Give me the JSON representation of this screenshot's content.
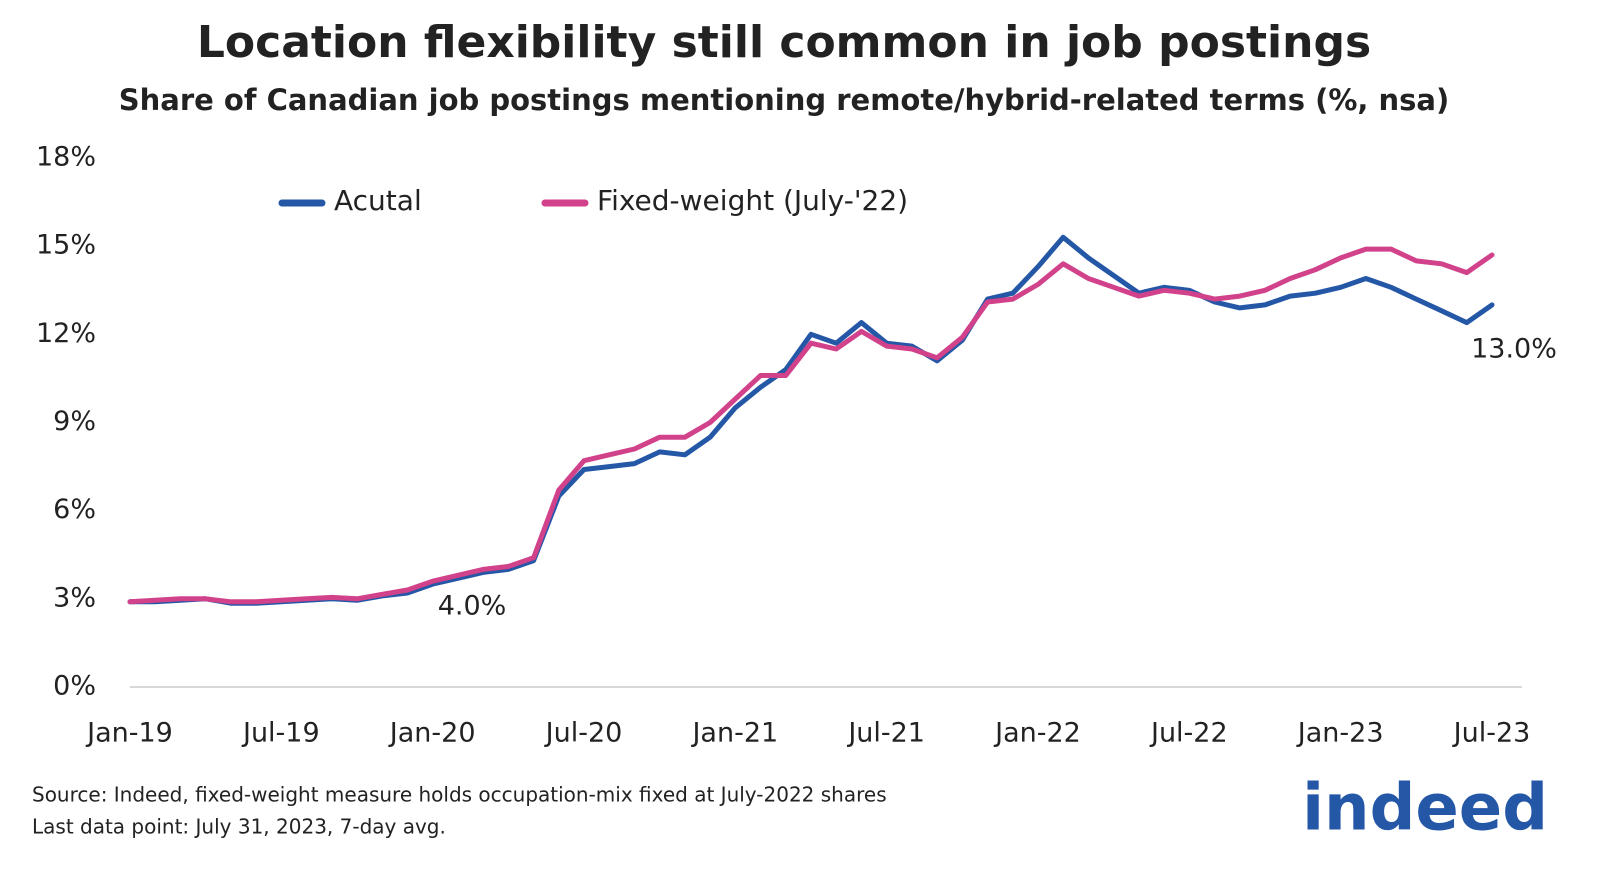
{
  "chart_data": {
    "type": "line",
    "title": "Location flexibility still common in job postings",
    "subtitle": "Share of Canadian job postings mentioning remote/hybrid-related terms (%, nsa)",
    "categories": [
      "Jan-19",
      null,
      null,
      null,
      null,
      null,
      "Jul-19",
      null,
      null,
      null,
      null,
      null,
      "Jan-20",
      null,
      null,
      null,
      null,
      null,
      "Jul-20",
      null,
      null,
      null,
      null,
      null,
      "Jan-21",
      null,
      null,
      null,
      null,
      null,
      "Jul-21",
      null,
      null,
      null,
      null,
      null,
      "Jan-22",
      null,
      null,
      null,
      null,
      null,
      "Jul-22",
      null,
      null,
      null,
      null,
      null,
      "Jan-23",
      null,
      null,
      null,
      null,
      null,
      "Jul-23"
    ],
    "series": [
      {
        "name": "Acutal",
        "color": "#2557a7",
        "values": [
          2.9,
          2.9,
          2.95,
          3.0,
          2.85,
          2.85,
          2.9,
          2.95,
          3.0,
          2.95,
          3.1,
          3.2,
          3.5,
          3.7,
          3.9,
          4.0,
          4.3,
          6.5,
          7.4,
          7.5,
          7.6,
          8.0,
          7.9,
          8.5,
          9.5,
          10.2,
          10.8,
          12.0,
          11.7,
          12.4,
          11.7,
          11.6,
          11.1,
          11.8,
          13.2,
          13.4,
          14.3,
          15.3,
          14.6,
          14.0,
          13.4,
          13.6,
          13.5,
          13.1,
          12.9,
          13.0,
          13.3,
          13.4,
          13.6,
          13.9,
          13.6,
          13.2,
          12.8,
          12.4,
          13.0
        ]
      },
      {
        "name": "Fixed-weight (July-'22)",
        "color": "#d1428b",
        "values": [
          2.9,
          2.95,
          3.0,
          3.0,
          2.9,
          2.9,
          2.95,
          3.0,
          3.05,
          3.0,
          3.15,
          3.3,
          3.6,
          3.8,
          4.0,
          4.1,
          4.4,
          6.7,
          7.7,
          7.9,
          8.1,
          8.5,
          8.5,
          9.0,
          9.8,
          10.6,
          10.6,
          11.7,
          11.5,
          12.1,
          11.6,
          11.5,
          11.2,
          11.9,
          13.1,
          13.2,
          13.7,
          14.4,
          13.9,
          13.6,
          13.3,
          13.5,
          13.4,
          13.2,
          13.3,
          13.5,
          13.9,
          14.2,
          14.6,
          14.9,
          14.9,
          14.5,
          14.4,
          14.1,
          14.7
        ]
      }
    ],
    "ylim": [
      0,
      18
    ],
    "yticks": [
      {
        "value": 0,
        "label": "0%"
      },
      {
        "value": 3,
        "label": "3%"
      },
      {
        "value": 6,
        "label": "6%"
      },
      {
        "value": 9,
        "label": "9%"
      },
      {
        "value": 12,
        "label": "12%"
      },
      {
        "value": 15,
        "label": "15%"
      },
      {
        "value": 18,
        "label": "18%"
      }
    ],
    "annotations": [
      "4.0%",
      "13.0%"
    ],
    "source": "Source: Indeed, fixed-weight measure holds occupation-mix fixed at July-2022 shares",
    "note": "Last data point: July 31, 2023, 7-day avg.",
    "logo": "indeed"
  }
}
